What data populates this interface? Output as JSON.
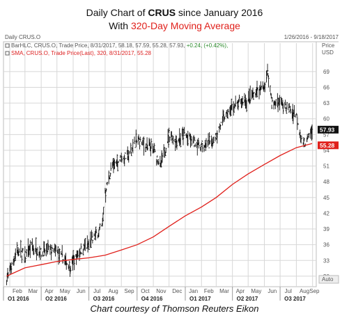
{
  "title": {
    "line1_prefix": "Daily Chart of ",
    "line1_symbol": "CRUS",
    "line1_suffix": " since January 2016",
    "line2_prefix": "With ",
    "line2_highlight": "320-Day Moving Average"
  },
  "panel": {
    "name": "Daily CRUS.O",
    "date_range": "1/26/2016 - 9/18/2017",
    "price_header": "Price",
    "price_unit": "USD",
    "auto_label": "Auto",
    "bar_legend_text": "BarHLC, CRUS.O, Trade Price, 8/31/2017, 58.18, 57.59, 55.28, 57.93, ",
    "bar_legend_change": "+0.24, (+0.42%),",
    "sma_legend_text": "SMA, CRUS.O, Trade Price(Last), 320, 8/31/2017, 55.28"
  },
  "colors": {
    "sma": "#e0201b",
    "bars": "#111111",
    "price_badge": "#111111",
    "sma_badge": "#e0201b",
    "grid": "#d7d7d7"
  },
  "footer": "Chart courtesy of Thomson Reuters Eikon",
  "chart_data": {
    "type": "line",
    "title": "Daily Chart of CRUS since January 2016 With 320-Day Moving Average",
    "ylabel": "Price USD",
    "ylim": [
      28,
      71.5
    ],
    "yticks": [
      30,
      33,
      36,
      39,
      42,
      45,
      48,
      51,
      54,
      57,
      60,
      63,
      66,
      69
    ],
    "x_month_labels": [
      "Feb",
      "Mar",
      "Apr",
      "May",
      "Jun",
      "Jul",
      "Aug",
      "Sep",
      "Oct",
      "Nov",
      "Dec",
      "Jan",
      "Feb",
      "Mar",
      "Apr",
      "May",
      "Jun",
      "Jul",
      "Aug",
      "Sep"
    ],
    "x_quarter_labels": [
      "Q1 2016",
      "Q2 2016",
      "Q3 2016",
      "Q4 2016",
      "Q1 2017",
      "Q2 2017",
      "Q3 2017"
    ],
    "grid": true,
    "last_values": {
      "price": "57.93",
      "sma": "55.28"
    },
    "series": [
      {
        "name": "BarHLC, CRUS.O, Trade Price",
        "kind": "ohlc",
        "x": [
          "2016-01-26",
          "2016-02-15",
          "2016-03-01",
          "2016-03-15",
          "2016-04-01",
          "2016-04-15",
          "2016-05-01",
          "2016-05-15",
          "2016-05-26",
          "2016-06-15",
          "2016-07-01",
          "2016-07-15",
          "2016-07-26",
          "2016-08-01",
          "2016-08-15",
          "2016-09-01",
          "2016-09-15",
          "2016-10-01",
          "2016-10-15",
          "2016-11-01",
          "2016-11-15",
          "2016-12-01",
          "2016-12-15",
          "2017-01-01",
          "2017-01-15",
          "2017-02-01",
          "2017-02-15",
          "2017-03-01",
          "2017-03-15",
          "2017-04-01",
          "2017-04-15",
          "2017-05-01",
          "2017-05-15",
          "2017-06-01",
          "2017-06-08",
          "2017-06-15",
          "2017-07-01",
          "2017-07-15",
          "2017-08-01",
          "2017-08-10",
          "2017-08-20",
          "2017-08-31"
        ],
        "y": [
          29.5,
          35,
          34,
          35.5,
          34.5,
          35,
          34.5,
          33,
          32,
          35,
          36,
          38,
          39.5,
          46,
          51,
          52.5,
          53,
          56,
          55,
          54,
          51,
          57,
          56,
          57,
          55.5,
          55,
          55,
          57,
          60,
          62,
          63,
          63.5,
          65,
          66,
          69,
          63,
          63,
          62,
          61,
          56,
          55.5,
          57.93
        ]
      },
      {
        "name": "SMA, CRUS.O, Trade Price(Last), 320",
        "kind": "line",
        "x": [
          "2016-01-26",
          "2016-03-01",
          "2016-04-01",
          "2016-05-01",
          "2016-06-01",
          "2016-07-01",
          "2016-08-01",
          "2016-09-01",
          "2016-10-01",
          "2016-11-01",
          "2016-12-01",
          "2017-01-01",
          "2017-02-01",
          "2017-03-01",
          "2017-04-01",
          "2017-05-01",
          "2017-06-01",
          "2017-07-01",
          "2017-08-01",
          "2017-08-31"
        ],
        "y": [
          30,
          31.6,
          32.2,
          32.8,
          33.2,
          33.5,
          34,
          35,
          36,
          37.5,
          39.5,
          41.5,
          43.2,
          45,
          47.5,
          49.5,
          51.3,
          53,
          54.5,
          55.28
        ]
      }
    ]
  }
}
